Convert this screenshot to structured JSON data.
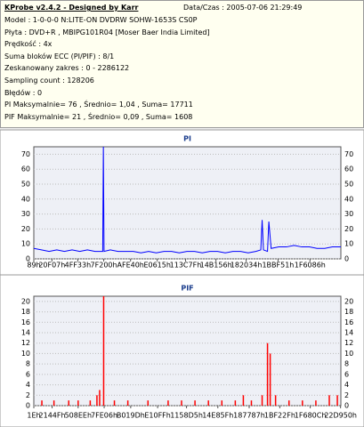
{
  "header": {
    "title": "KProbe v2.4.2 - Designed by Karr",
    "datetime": "Data/Czas : 2005-07-06 21:29:49",
    "lines": [
      "Model : 1-0-0-0 N:LITE-ON DVDRW SOHW-1653S CS0P",
      "Płyta : DVD+R , MBIPG101R04 [Moser Baer India Limited]",
      "Prędkość : 4x",
      "Suma bloków ECC (PI/PIF) : 8/1",
      "Zeskanowany zakres : 0 - 2286122",
      "Sampling count : 128206",
      "Błędów : 0",
      "PI Maksymalnie= 76 , Średnio= 1,04 , Suma= 17711",
      "PIF Maksymalnie= 21 , Średnio= 0,09 , Suma= 1608"
    ]
  },
  "chart_data": [
    {
      "type": "line",
      "title": "PI",
      "color": "#0000ff",
      "grid": true,
      "x": [
        137,
        57000,
        114000,
        171000,
        228000,
        285000,
        342000,
        399000,
        456000,
        513000,
        518000,
        523000,
        570000,
        627000,
        684000,
        741000,
        798000,
        855000,
        912000,
        969000,
        1026000,
        1083000,
        1140000,
        1197000,
        1254000,
        1311000,
        1368000,
        1425000,
        1482000,
        1539000,
        1596000,
        1653000,
        1690000,
        1700000,
        1710000,
        1740000,
        1750000,
        1767000,
        1824000,
        1881000,
        1938000,
        1995000,
        2052000,
        2109000,
        2166000,
        2223000,
        2286122
      ],
      "values": [
        7,
        6,
        5,
        6,
        5,
        6,
        5,
        6,
        5,
        5,
        76,
        5,
        6,
        5,
        5,
        5,
        4,
        5,
        4,
        5,
        5,
        4,
        5,
        5,
        4,
        5,
        5,
        4,
        5,
        5,
        4,
        5,
        6,
        26,
        6,
        5,
        25,
        7,
        8,
        8,
        9,
        8,
        8,
        7,
        7,
        8,
        8
      ],
      "xlim": [
        137,
        2286122
      ],
      "ylim": [
        0,
        75
      ],
      "yticks": [
        0,
        10,
        20,
        30,
        40,
        50,
        60,
        70
      ],
      "xticks": [
        {
          "value": 137,
          "label": "89h"
        },
        {
          "value": 134919,
          "label": "20F07h"
        },
        {
          "value": 327475,
          "label": "4FF33h"
        },
        {
          "value": 520704,
          "label": "7F200h"
        },
        {
          "value": 720448,
          "label": "AFE40h"
        },
        {
          "value": 919061,
          "label": "E0615h"
        },
        {
          "value": 1129599,
          "label": "113C7Fh"
        },
        {
          "value": 1356118,
          "label": "14B156h"
        },
        {
          "value": 1581108,
          "label": "182034h"
        },
        {
          "value": 1818449,
          "label": "1BBF51h"
        },
        {
          "value": 2056326,
          "label": "1F6086h"
        }
      ]
    },
    {
      "type": "bar",
      "title": "PIF",
      "color": "#ff0000",
      "grid": true,
      "x": [
        60000,
        150000,
        260000,
        330000,
        420000,
        470000,
        490000,
        520000,
        600000,
        700000,
        850000,
        1000000,
        1100000,
        1200000,
        1300000,
        1400000,
        1500000,
        1560000,
        1620000,
        1700000,
        1740000,
        1760000,
        1800000,
        1900000,
        2000000,
        2100000,
        2200000,
        2260000
      ],
      "values": [
        1,
        1,
        1,
        1,
        1,
        2,
        3,
        21,
        1,
        1,
        1,
        1,
        1,
        1,
        1,
        1,
        1,
        2,
        1,
        2,
        12,
        10,
        2,
        1,
        1,
        1,
        2,
        2
      ],
      "xlim": [
        30,
        2286122
      ],
      "ylim": [
        0,
        21
      ],
      "yticks": [
        0,
        2,
        4,
        6,
        8,
        10,
        12,
        14,
        16,
        18,
        20
      ],
      "xticks": [
        {
          "value": 30,
          "label": "1Eh"
        },
        {
          "value": 136271,
          "label": "2144Fh"
        },
        {
          "value": 329966,
          "label": "508EEh"
        },
        {
          "value": 523782,
          "label": "7FE06h"
        },
        {
          "value": 721309,
          "label": "B019Dh"
        },
        {
          "value": 921855,
          "label": "E10FFh"
        },
        {
          "value": 1136853,
          "label": "1158D5h"
        },
        {
          "value": 1370207,
          "label": "14E85Fh"
        },
        {
          "value": 1603463,
          "label": "187787h"
        },
        {
          "value": 1831472,
          "label": "1BF22Fh"
        },
        {
          "value": 2058252,
          "label": "1F680Ch"
        },
        {
          "value": 2283856,
          "label": "22D950h"
        }
      ]
    }
  ]
}
